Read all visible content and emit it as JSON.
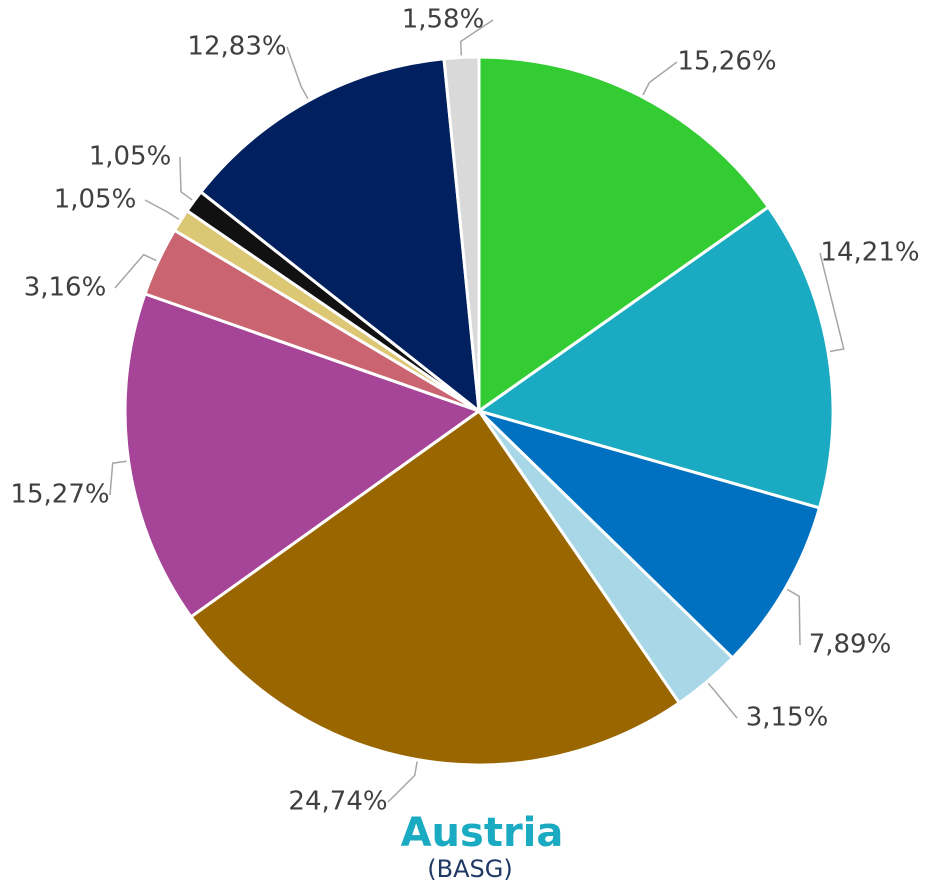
{
  "chart_data": {
    "type": "pie",
    "title": "Austria",
    "subtitle": "(BASG)",
    "values": [
      15.26,
      14.21,
      7.89,
      3.15,
      24.74,
      15.27,
      3.16,
      1.05,
      1.05,
      12.83,
      1.58
    ],
    "value_labels": [
      "15,26%",
      "14,21%",
      "7,89%",
      "3,15%",
      "24,74%",
      "15,27%",
      "3,16%",
      "1,05%",
      "1,05%",
      "12,83%",
      "1,58%"
    ],
    "colors": [
      "#33cc33",
      "#1aabc2",
      "#0070c0",
      "#a8d8e8",
      "#996600",
      "#a64497",
      "#c96470",
      "#dcc774",
      "#111111",
      "#00205f",
      "#d9d9d9"
    ]
  }
}
